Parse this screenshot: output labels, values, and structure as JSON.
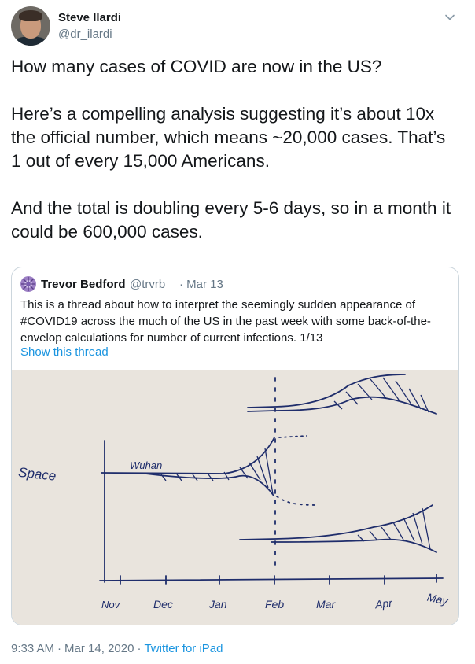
{
  "author": {
    "name": "Steve Ilardi",
    "handle": "@dr_ilardi"
  },
  "tweet": {
    "paragraphs": [
      "How many cases of COVID are now in the US?",
      "Here’s a compelling analysis suggesting it’s about 10x the official number, which means ~20,000 cases. That’s 1 out of every 15,000 Americans.",
      "And the total is doubling every 5-6 days, so in a month it could be 600,000 cases."
    ]
  },
  "quoted": {
    "name": "Trevor Bedford",
    "handle": "@trvrb",
    "date": "· Mar 13",
    "text": "This is a thread about how to interpret the seemingly sudden appearance of #COVID19 across the much of the US in the past week with some back-of-the-envelop calculations for number of current infections. 1/13",
    "link": "Show this thread",
    "image": {
      "y_label": "Space",
      "annotation": "Wuhan",
      "months": [
        "Nov",
        "Dec",
        "Jan",
        "Feb",
        "Mar",
        "Apr",
        "May"
      ]
    }
  },
  "footer": {
    "time": "9:33 AM",
    "date": "Mar 14, 2020",
    "source": "Twitter for iPad"
  },
  "colors": {
    "link": "#1b95e0",
    "secondary": "#657786",
    "ink": "#1f2d6b"
  }
}
